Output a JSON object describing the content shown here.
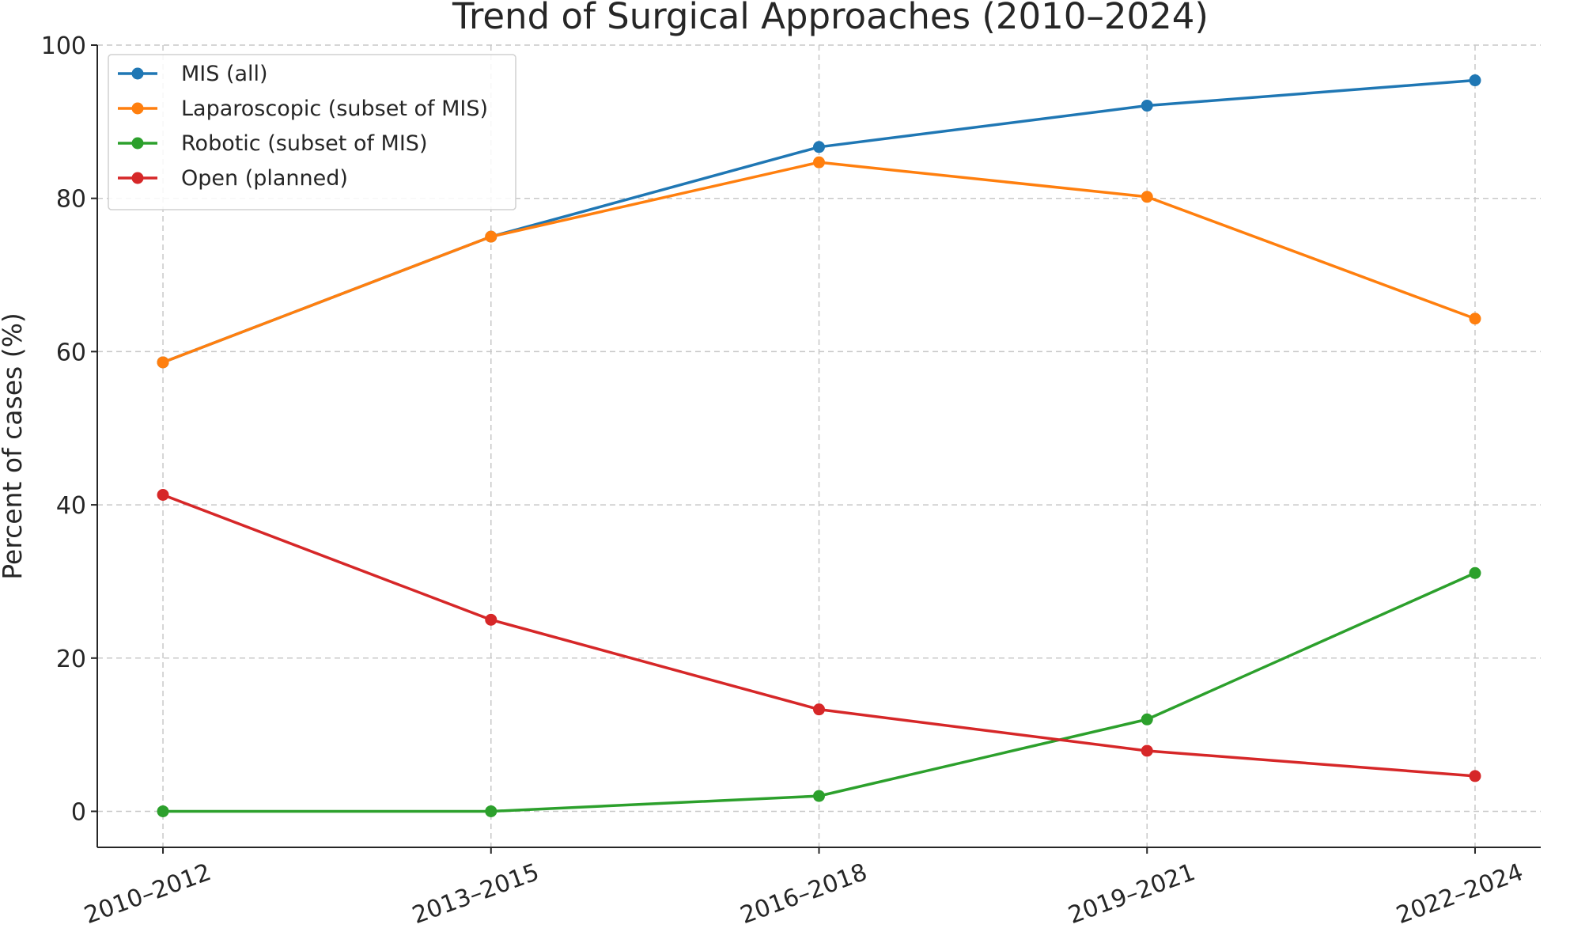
{
  "chart_data": {
    "type": "line",
    "title": "Trend of Surgical Approaches (2010–2024)",
    "xlabel": "",
    "ylabel": "Percent of cases (%)",
    "categories": [
      "2010–2012",
      "2013–2015",
      "2016–2018",
      "2019–2021",
      "2022–2024"
    ],
    "ylim": [
      -4.7,
      100
    ],
    "yticks": [
      0,
      20,
      40,
      60,
      80,
      100
    ],
    "grid": true,
    "legend_position": "top-left",
    "series": [
      {
        "name": "MIS (all)",
        "color": "#1f77b4",
        "values": [
          58.6,
          75.0,
          86.7,
          92.1,
          95.4
        ]
      },
      {
        "name": "Laparoscopic (subset of MIS)",
        "color": "#ff7f0e",
        "values": [
          58.6,
          75.0,
          84.7,
          80.2,
          64.3
        ]
      },
      {
        "name": "Robotic (subset of MIS)",
        "color": "#2ca02c",
        "values": [
          0.0,
          0.0,
          2.0,
          12.0,
          31.1
        ]
      },
      {
        "name": "Open (planned)",
        "color": "#d62728",
        "values": [
          41.3,
          25.0,
          13.3,
          7.9,
          4.6
        ]
      }
    ]
  }
}
